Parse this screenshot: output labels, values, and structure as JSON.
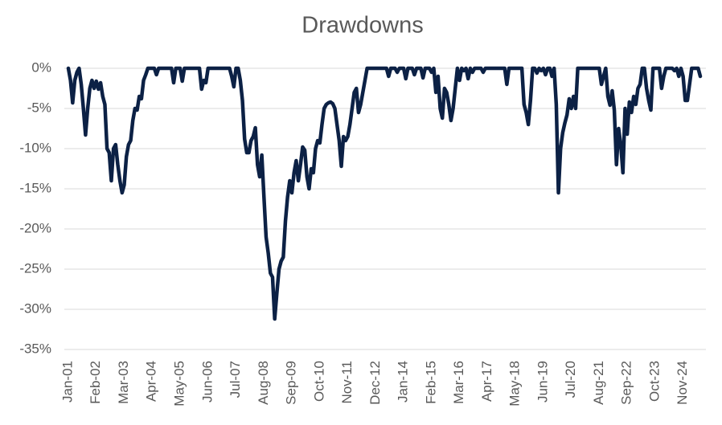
{
  "chart_data": {
    "type": "line",
    "title": "Drawdowns",
    "categories": [
      "Jan-01",
      null,
      null,
      null,
      null,
      null,
      null,
      null,
      null,
      null,
      null,
      null,
      null,
      "Feb-02",
      null,
      null,
      null,
      null,
      null,
      null,
      null,
      null,
      null,
      null,
      null,
      null,
      "Mar-03",
      null,
      null,
      null,
      null,
      null,
      null,
      null,
      null,
      null,
      null,
      null,
      null,
      "Apr-04",
      null,
      null,
      null,
      null,
      null,
      null,
      null,
      null,
      null,
      null,
      null,
      null,
      "May-05",
      null,
      null,
      null,
      null,
      null,
      null,
      null,
      null,
      null,
      null,
      null,
      null,
      "Jun-06",
      null,
      null,
      null,
      null,
      null,
      null,
      null,
      null,
      null,
      null,
      null,
      null,
      "Jul-07",
      null,
      null,
      null,
      null,
      null,
      null,
      null,
      null,
      null,
      null,
      null,
      null,
      "Aug-08",
      null,
      null,
      null,
      null,
      null,
      null,
      null,
      null,
      null,
      null,
      null,
      null,
      "Sep-09",
      null,
      null,
      null,
      null,
      null,
      null,
      null,
      null,
      null,
      null,
      null,
      null,
      "Oct-10",
      null,
      null,
      null,
      null,
      null,
      null,
      null,
      null,
      null,
      null,
      null,
      null,
      "Nov-11",
      null,
      null,
      null,
      null,
      null,
      null,
      null,
      null,
      null,
      null,
      null,
      null,
      "Dec-12",
      null,
      null,
      null,
      null,
      null,
      null,
      null,
      null,
      null,
      null,
      null,
      null,
      "Jan-14",
      null,
      null,
      null,
      null,
      null,
      null,
      null,
      null,
      null,
      null,
      null,
      null,
      "Feb-15",
      null,
      null,
      null,
      null,
      null,
      null,
      null,
      null,
      null,
      null,
      null,
      null,
      "Mar-16",
      null,
      null,
      null,
      null,
      null,
      null,
      null,
      null,
      null,
      null,
      null,
      null,
      "Apr-17",
      null,
      null,
      null,
      null,
      null,
      null,
      null,
      null,
      null,
      null,
      null,
      null,
      "May-18",
      null,
      null,
      null,
      null,
      null,
      null,
      null,
      null,
      null,
      null,
      null,
      null,
      "Jun-19",
      null,
      null,
      null,
      null,
      null,
      null,
      null,
      null,
      null,
      null,
      null,
      null,
      "Jul-20",
      null,
      null,
      null,
      null,
      null,
      null,
      null,
      null,
      null,
      null,
      null,
      null,
      "Aug-21",
      null,
      null,
      null,
      null,
      null,
      null,
      null,
      null,
      null,
      null,
      null,
      null,
      "Sep-22",
      null,
      null,
      null,
      null,
      null,
      null,
      null,
      null,
      null,
      null,
      null,
      null,
      "Oct-23",
      null,
      null,
      null,
      null,
      null,
      null,
      null,
      null,
      null,
      null,
      null,
      null,
      "Nov-24",
      null,
      null,
      null,
      null,
      null,
      null,
      null,
      null
    ],
    "values": [
      0,
      -1.5,
      -4.3,
      -1.5,
      -0.5,
      0,
      -2,
      -5,
      -8.3,
      -5,
      -2.5,
      -1.5,
      -2.5,
      -1.6,
      -2.6,
      -1.8,
      -3.5,
      -4.5,
      -10,
      -10.5,
      -14,
      -10,
      -9.5,
      -12,
      -14,
      -15.5,
      -14.5,
      -11,
      -9.5,
      -9,
      -6.5,
      -5,
      -5.2,
      -3.5,
      -3.8,
      -1.5,
      -0.8,
      0,
      0,
      0,
      0,
      -0.8,
      0,
      0,
      0,
      0,
      0,
      0,
      0,
      -1.8,
      0,
      0,
      0,
      -1.6,
      0,
      0,
      0,
      0,
      0,
      0,
      0,
      0,
      -2.6,
      -1.5,
      -1.8,
      0,
      0,
      0,
      0,
      0,
      0,
      0,
      0,
      0,
      0,
      0,
      -1,
      -2.3,
      0,
      0,
      -1.5,
      -4,
      -8.8,
      -10.5,
      -10.5,
      -9,
      -8.5,
      -7.4,
      -12,
      -13.5,
      -10.8,
      -16,
      -21,
      -23,
      -25.5,
      -26,
      -31.2,
      -28,
      -25,
      -24,
      -23.5,
      -19,
      -16,
      -14,
      -15.5,
      -13,
      -11.5,
      -14,
      -12,
      -9.8,
      -10.2,
      -13.5,
      -15,
      -12.5,
      -13,
      -10,
      -9,
      -9.3,
      -7,
      -5,
      -4.5,
      -4.3,
      -4.2,
      -4.4,
      -5,
      -7,
      -9,
      -12.2,
      -8.5,
      -9,
      -8.5,
      -7,
      -5,
      -3,
      -2.5,
      -5.5,
      -4.5,
      -3,
      -1.5,
      0,
      0,
      0,
      0,
      0,
      0,
      0,
      0,
      0,
      0,
      -1,
      0,
      0,
      0,
      -0.5,
      0,
      0,
      0,
      -1.3,
      0,
      0,
      0,
      -0.8,
      0,
      0,
      0,
      -1.2,
      0,
      0,
      0,
      -0.5,
      0,
      -3,
      -1,
      -5,
      -6.2,
      -2.5,
      -3,
      -4.5,
      -6.5,
      -5,
      -2.5,
      0,
      -1.5,
      0,
      -0.3,
      0,
      -1.3,
      0,
      -0.5,
      0,
      0,
      0,
      0,
      -0.5,
      0,
      0,
      0,
      0,
      0,
      0,
      0,
      0,
      0,
      0,
      -2,
      0,
      0,
      0,
      0,
      0,
      0,
      0,
      -4.5,
      -5.5,
      -7,
      -4,
      0,
      0,
      -0.6,
      0,
      -0.3,
      0,
      -0.8,
      0,
      0,
      -1,
      0,
      -4.5,
      -15.5,
      -10,
      -8,
      -6.8,
      -5.8,
      -3.8,
      -5,
      -3.5,
      -5,
      0,
      0,
      0,
      0,
      0,
      0,
      0,
      0,
      0,
      0,
      0,
      -2,
      -1,
      0,
      -3.5,
      -4.6,
      -2.8,
      -5.2,
      -12,
      -7.5,
      -9.5,
      -13,
      -5,
      -8.2,
      -4.2,
      -5.5,
      -3.5,
      -4.5,
      -2.5,
      -2,
      0,
      0,
      -2.5,
      -4,
      -5.2,
      0,
      0,
      0,
      0,
      -2.5,
      -1,
      0,
      0,
      0,
      0,
      -0.3,
      0,
      -1,
      0,
      -1,
      -4,
      -4,
      -2,
      0,
      0,
      0,
      0,
      -1
    ],
    "color": "#0c2145",
    "ylim": [
      -35,
      0
    ],
    "yticks": [
      {
        "value": 0,
        "label": "0%"
      },
      {
        "value": -5,
        "label": "-5%"
      },
      {
        "value": -10,
        "label": "-10%"
      },
      {
        "value": -15,
        "label": "-15%"
      },
      {
        "value": -20,
        "label": "-20%"
      },
      {
        "value": -25,
        "label": "-25%"
      },
      {
        "value": -30,
        "label": "-30%"
      },
      {
        "value": -35,
        "label": "-35%"
      }
    ],
    "grid": true
  }
}
